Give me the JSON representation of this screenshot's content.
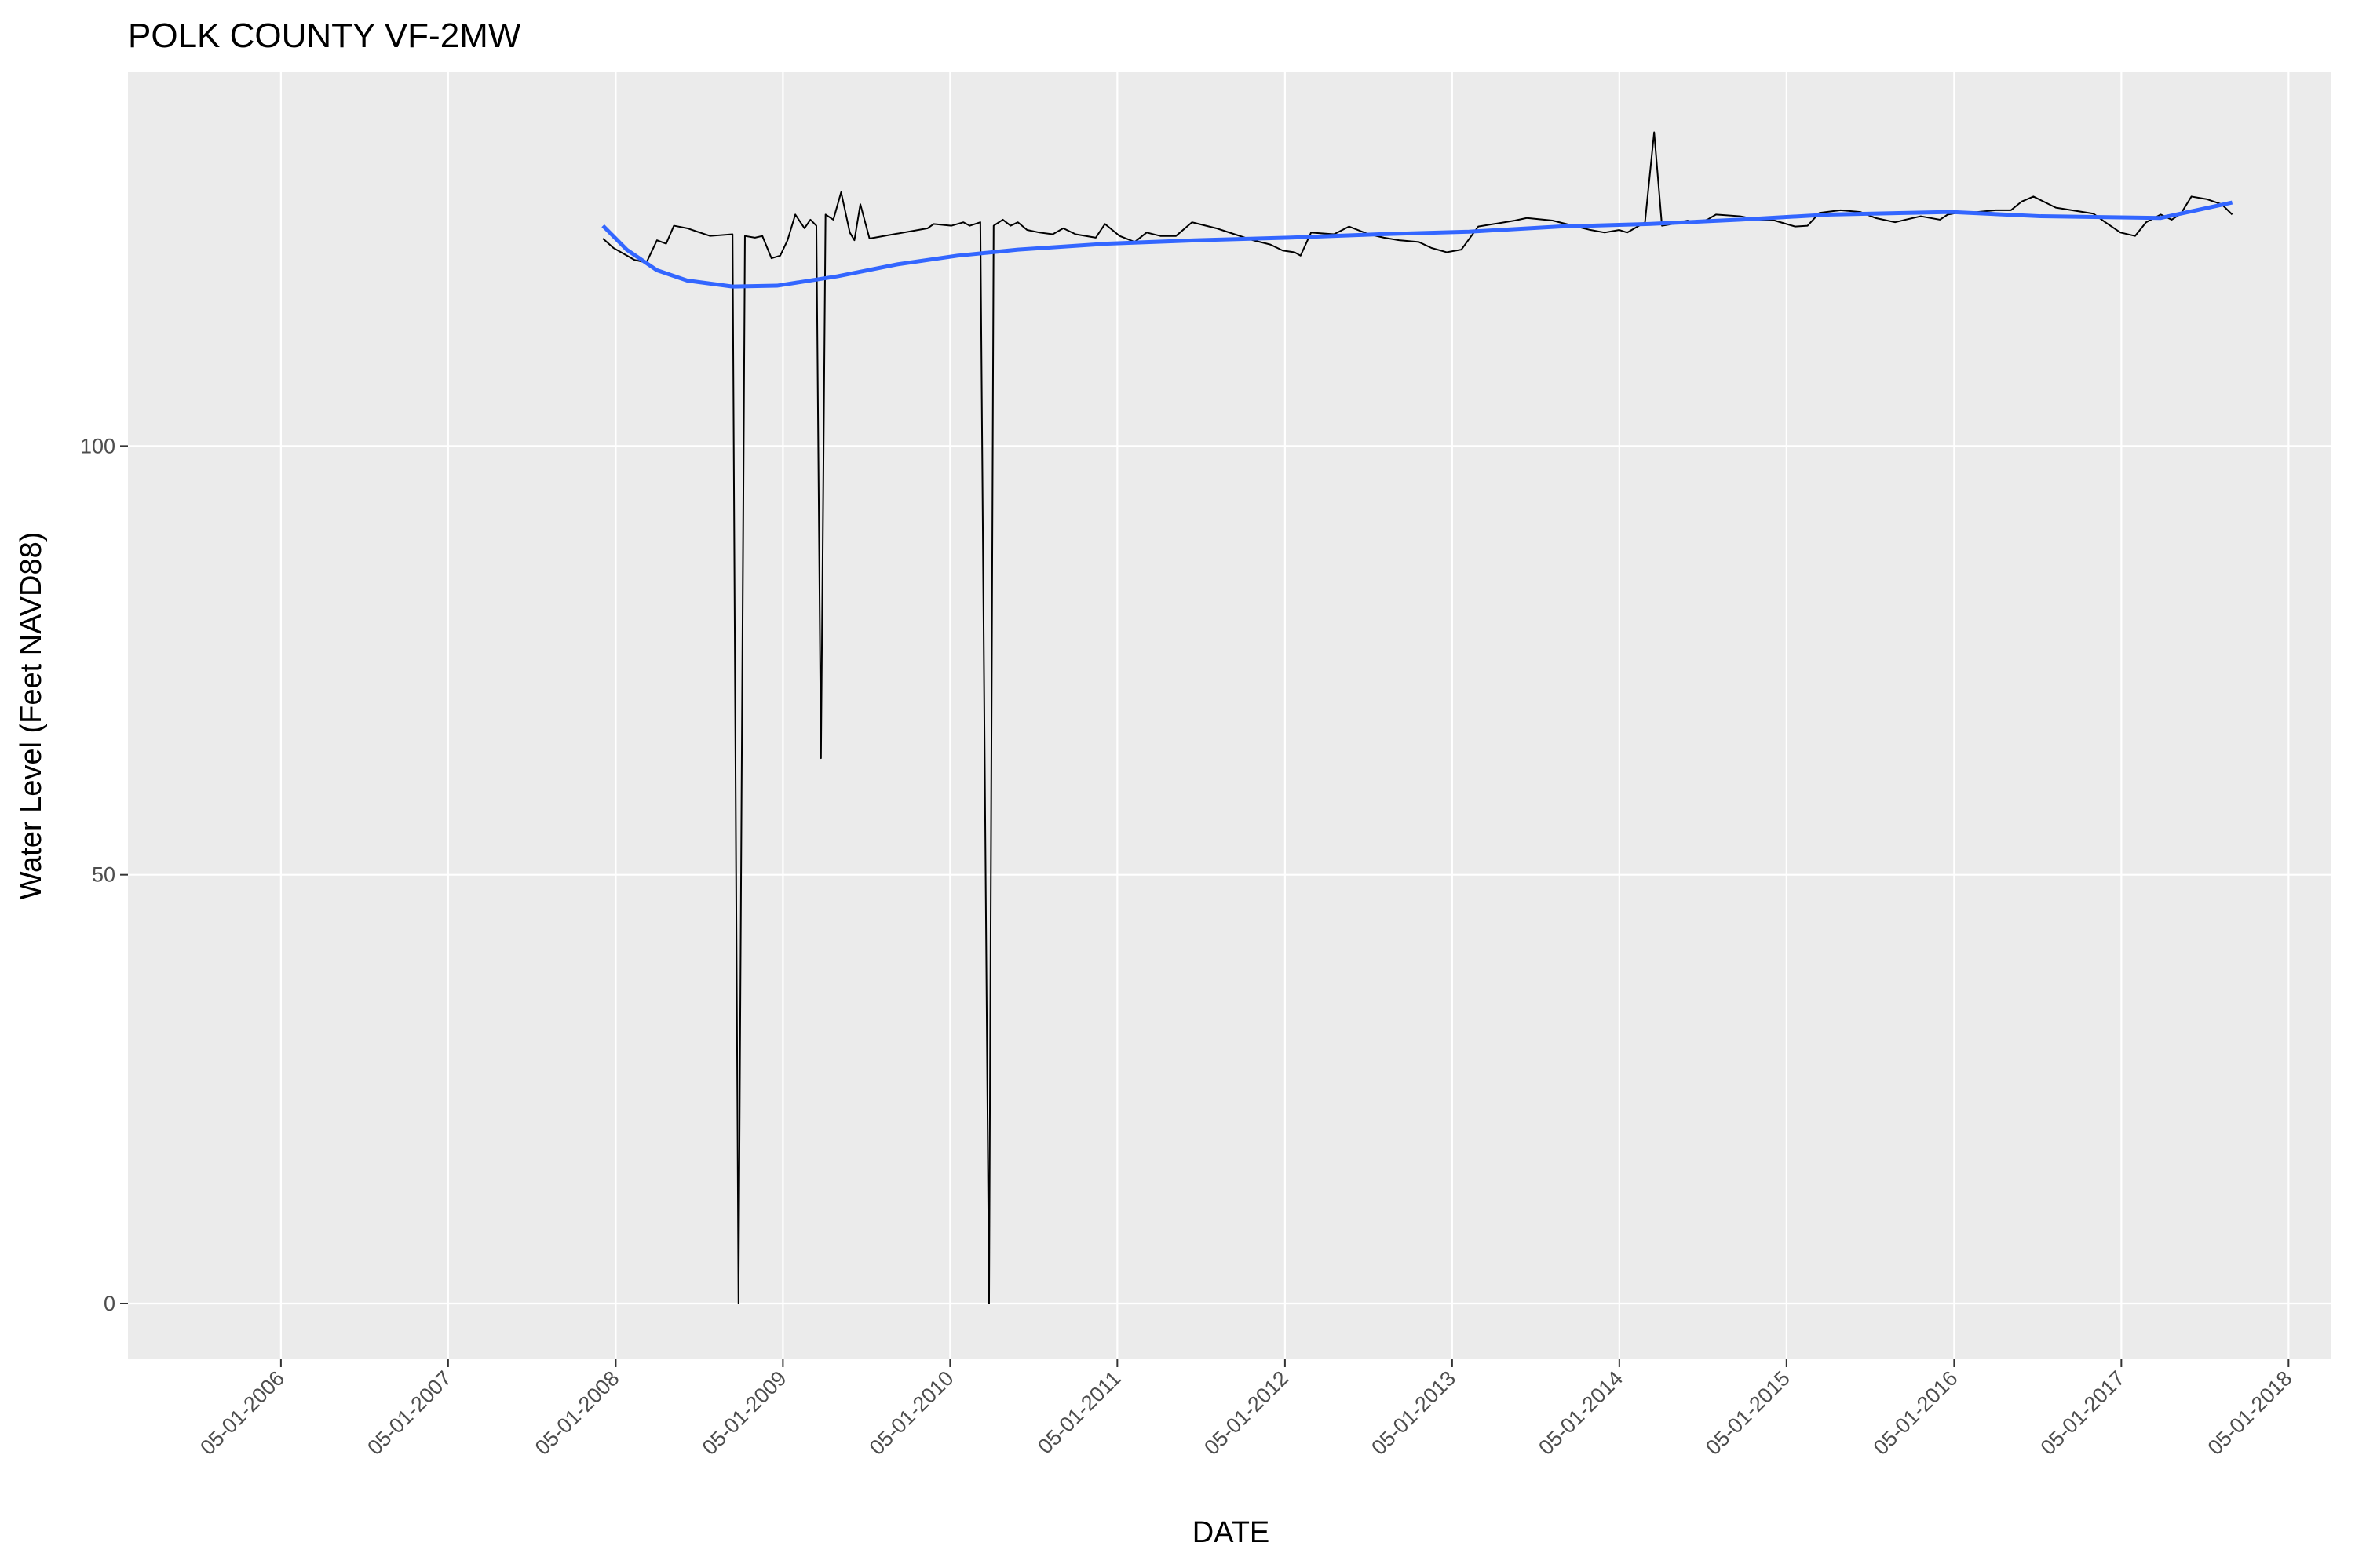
{
  "chart_data": {
    "type": "line",
    "title": "POLK COUNTY VF-2MW",
    "x_label": "DATE",
    "y_label": "Water Level (Feet NAVD88)",
    "xlim": [
      "2005-06-01",
      "2018-08-01"
    ],
    "xticks": [
      {
        "value": "2006-05-01",
        "label": "05-01-2006"
      },
      {
        "value": "2007-05-01",
        "label": "05-01-2007"
      },
      {
        "value": "2008-05-01",
        "label": "05-01-2008"
      },
      {
        "value": "2009-05-01",
        "label": "05-01-2009"
      },
      {
        "value": "2010-05-01",
        "label": "05-01-2010"
      },
      {
        "value": "2011-05-01",
        "label": "05-01-2011"
      },
      {
        "value": "2012-05-01",
        "label": "05-01-2012"
      },
      {
        "value": "2013-05-01",
        "label": "05-01-2013"
      },
      {
        "value": "2014-05-01",
        "label": "05-01-2014"
      },
      {
        "value": "2015-05-01",
        "label": "05-01-2015"
      },
      {
        "value": "2016-05-01",
        "label": "05-01-2016"
      },
      {
        "value": "2017-05-01",
        "label": "05-01-2017"
      },
      {
        "value": "2018-05-01",
        "label": "05-01-2018"
      }
    ],
    "ylim": [
      -6.5,
      143.6
    ],
    "yticks": [
      0,
      50,
      100
    ],
    "grid": true,
    "series": [
      {
        "color": "#000000",
        "width": 2,
        "x": [
          "2008-04-03",
          "2008-04-26",
          "2008-06-11",
          "2008-07-07",
          "2008-07-30",
          "2008-08-19",
          "2008-09-05",
          "2008-10-04",
          "2008-11-23",
          "2009-01-11",
          "2009-01-24",
          "2009-02-07",
          "2009-03-01",
          "2009-03-17",
          "2009-04-06",
          "2009-04-25",
          "2009-05-11",
          "2009-05-28",
          "2009-06-17",
          "2009-06-30",
          "2009-07-13",
          "2009-07-23",
          "2009-08-02",
          "2009-08-19",
          "2009-09-05",
          "2009-09-24",
          "2009-10-04",
          "2009-10-17",
          "2009-11-06",
          "2010-03-13",
          "2010-03-26",
          "2010-05-04",
          "2010-05-30",
          "2010-06-13",
          "2010-07-06",
          "2010-07-25",
          "2010-08-04",
          "2010-08-24",
          "2010-09-10",
          "2010-09-26",
          "2010-10-16",
          "2010-11-12",
          "2010-12-11",
          "2011-01-03",
          "2011-01-30",
          "2011-03-15",
          "2011-04-04",
          "2011-05-06",
          "2011-06-08",
          "2011-07-04",
          "2011-08-03",
          "2011-09-06",
          "2011-10-11",
          "2011-12-03",
          "2012-01-12",
          "2012-02-21",
          "2012-03-30",
          "2012-04-26",
          "2012-05-22",
          "2012-06-04",
          "2012-06-27",
          "2012-08-16",
          "2012-09-18",
          "2012-10-31",
          "2012-12-03",
          "2013-01-05",
          "2013-02-17",
          "2013-03-17",
          "2013-04-19",
          "2013-05-21",
          "2013-06-27",
          "2013-09-15",
          "2013-10-11",
          "2013-12-06",
          "2014-02-27",
          "2014-03-30",
          "2014-05-01",
          "2014-05-18",
          "2014-06-10",
          "2014-06-26",
          "2014-07-16",
          "2014-08-02",
          "2014-08-25",
          "2014-09-27",
          "2014-10-13",
          "2014-11-09",
          "2014-11-28",
          "2015-01-20",
          "2015-02-28",
          "2015-04-05",
          "2015-05-20",
          "2015-06-16",
          "2015-07-12",
          "2015-08-27",
          "2015-10-09",
          "2015-11-11",
          "2015-12-24",
          "2016-01-16",
          "2016-02-18",
          "2016-03-31",
          "2016-04-17",
          "2016-05-09",
          "2016-06-21",
          "2016-07-31",
          "2016-09-02",
          "2016-09-25",
          "2016-10-21",
          "2016-12-09",
          "2017-03-01",
          "2017-03-27",
          "2017-04-29",
          "2017-05-31",
          "2017-06-24",
          "2017-07-26",
          "2017-08-19",
          "2017-09-08",
          "2017-10-01",
          "2017-11-03",
          "2017-12-06",
          "2017-12-29"
        ],
        "values": [
          124.2,
          123.1,
          121.7,
          121.4,
          124.0,
          123.6,
          125.7,
          125.4,
          124.5,
          124.7,
          0,
          124.5,
          124.3,
          124.5,
          121.9,
          122.2,
          124.0,
          127.0,
          125.4,
          126.4,
          125.7,
          63.6,
          127.0,
          126.4,
          129.6,
          124.9,
          124.0,
          128.2,
          124.2,
          125.4,
          125.9,
          125.7,
          126.1,
          125.7,
          126.1,
          0,
          125.7,
          126.4,
          125.7,
          126.1,
          125.2,
          124.9,
          124.7,
          125.4,
          124.7,
          124.3,
          125.9,
          124.5,
          123.8,
          124.9,
          124.5,
          124.5,
          126.1,
          125.4,
          124.7,
          124.0,
          123.5,
          122.8,
          122.6,
          122.2,
          124.9,
          124.7,
          125.6,
          124.7,
          124.3,
          124.0,
          123.8,
          123.1,
          122.6,
          122.9,
          125.6,
          126.3,
          126.6,
          126.3,
          125.2,
          124.9,
          125.2,
          124.9,
          125.6,
          126.1,
          136.6,
          125.7,
          125.9,
          126.3,
          126.1,
          126.4,
          127.0,
          126.8,
          126.4,
          126.3,
          125.6,
          125.7,
          127.2,
          127.5,
          127.3,
          126.6,
          126.1,
          126.4,
          126.8,
          126.4,
          127.0,
          127.2,
          127.3,
          127.5,
          127.5,
          128.5,
          129.1,
          127.8,
          127.1,
          126.1,
          124.9,
          124.5,
          126.1,
          127.0,
          126.4,
          127.1,
          129.1,
          128.8,
          128.2,
          127.0
        ]
      },
      {
        "color": "#3366FF",
        "width": 5,
        "x": [
          "2008-04-03",
          "2008-05-25",
          "2008-07-30",
          "2008-10-04",
          "2009-01-11",
          "2009-04-18",
          "2009-08-28",
          "2010-01-07",
          "2010-05-17",
          "2010-09-26",
          "2011-04-10",
          "2011-10-24",
          "2012-05-09",
          "2012-11-23",
          "2013-06-07",
          "2013-12-22",
          "2014-07-05",
          "2015-01-20",
          "2015-08-04",
          "2016-04-23",
          "2016-11-06",
          "2017-07-26",
          "2017-12-29"
        ],
        "values": [
          125.7,
          122.9,
          120.5,
          119.3,
          118.6,
          118.7,
          119.8,
          121.2,
          122.2,
          122.9,
          123.6,
          124.0,
          124.3,
          124.7,
          125.0,
          125.6,
          125.9,
          126.4,
          127.0,
          127.3,
          126.8,
          126.6,
          128.4
        ]
      }
    ]
  }
}
